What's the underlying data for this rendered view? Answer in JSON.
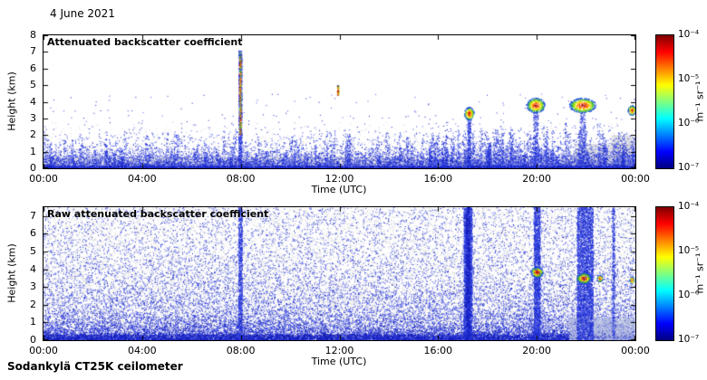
{
  "header": {
    "date": "4 June 2021"
  },
  "footer": {
    "label": "Sodankylä CT25K ceilometer"
  },
  "chart_data": [
    {
      "type": "heatmap",
      "title": "Attenuated backscatter coefficient",
      "xlabel": "Time (UTC)",
      "ylabel": "Height (km)",
      "x_ticks": [
        "00:00",
        "04:00",
        "08:00",
        "12:00",
        "16:00",
        "20:00",
        "00:00"
      ],
      "x_hours": [
        0,
        4,
        8,
        12,
        16,
        20,
        24
      ],
      "xlim": [
        0,
        24
      ],
      "ylim": [
        0,
        8
      ],
      "y_ticks": [
        0,
        1,
        2,
        3,
        4,
        5,
        6,
        7,
        8
      ],
      "grid": false,
      "colorbar": {
        "label": "m⁻¹ sr⁻¹",
        "scale": "log",
        "min": "10⁻⁷",
        "max": "10⁻⁴",
        "ticks": [
          "10⁻⁴",
          "10⁻⁵",
          "10⁻⁶",
          "10⁻⁷"
        ],
        "stops": [
          {
            "p": 0,
            "c": "#000080"
          },
          {
            "p": 12.5,
            "c": "#0000ff"
          },
          {
            "p": 37.5,
            "c": "#00ffff"
          },
          {
            "p": 62.5,
            "c": "#ffff00"
          },
          {
            "p": 87.5,
            "c": "#ff0000"
          },
          {
            "p": 100,
            "c": "#800000"
          }
        ]
      },
      "noise_seed": 42,
      "palettes": {
        "gray": [
          "#e6e6e6",
          "#dadade",
          "#cfcfd6",
          "#c3c7d2"
        ],
        "bluegray": [
          "#c9cfe6",
          "#b3bce0",
          "#9aa6d8"
        ],
        "blue": [
          "#2233dd",
          "#3344e8",
          "#1a2acc",
          "#4d5cee",
          "#0f1db8"
        ],
        "deepblue": [
          "#0a13a0",
          "#131fc4",
          "#2431dd"
        ],
        "cloud": [
          "#a00000",
          "#e03000",
          "#ff8000",
          "#ffd800",
          "#a8e000",
          "#30b040",
          "#2050e0"
        ],
        "jet_core": [
          "#b00000",
          "#ff4000",
          "#ffa000",
          "#ffe000",
          "#80d800",
          "#20a848",
          "#2848ff"
        ]
      },
      "layers": [
        {
          "type": "uniform",
          "palette": "gray",
          "n": 9000,
          "x0": 0,
          "x1": 24,
          "y0": 0,
          "y1": 0.7
        },
        {
          "type": "exp",
          "palette": "gray",
          "n": 3500,
          "x0": 0,
          "x1": 24,
          "scale": 0.8,
          "ymax": 2.8
        },
        {
          "type": "uniform",
          "palette": "gray",
          "n": 2200,
          "x0": 21.5,
          "x1": 24,
          "y0": 0,
          "y1": 1.5
        },
        {
          "type": "uniform",
          "palette": "gray",
          "n": 1400,
          "x0": 23,
          "x1": 24,
          "y0": 0,
          "y1": 2.0
        },
        {
          "type": "exp",
          "palette": "blue",
          "n": 11000,
          "x0": 0,
          "x1": 24,
          "scale": 0.5,
          "ymax": 3.2
        },
        {
          "type": "spikes",
          "palette": "blue",
          "count": 120,
          "x0": 0,
          "x1": 24,
          "top_min": 0.7,
          "top_max": 2.5,
          "dots": 26,
          "hw": 0.05
        },
        {
          "type": "spikes",
          "palette": "blue",
          "count": 70,
          "x0": 15.5,
          "x1": 24,
          "top_min": 1.0,
          "top_max": 2.9,
          "dots": 30,
          "hw": 0.05
        },
        {
          "type": "uniform",
          "palette": "blue",
          "n": 100,
          "x0": 0,
          "x1": 24,
          "y0": 2.5,
          "y1": 4.5
        },
        {
          "type": "uniform",
          "palette": "deepblue",
          "n": 2600,
          "x0": 0,
          "x1": 24,
          "y0": 0,
          "y1": 0.15
        },
        {
          "type": "column",
          "palette": "blue",
          "x": 7.97,
          "hw": 0.07,
          "y0": 0,
          "y1": 7.1,
          "n": 800
        },
        {
          "type": "column",
          "palette": "jet_core",
          "x": 7.97,
          "hw": 0.045,
          "y0": 2.0,
          "y1": 7.0,
          "n": 300
        },
        {
          "type": "column",
          "palette": "jet_core",
          "x": 11.93,
          "hw": 0.035,
          "y0": 4.4,
          "y1": 5.0,
          "n": 70
        },
        {
          "type": "column",
          "palette": "blue",
          "x": 17.25,
          "hw": 0.07,
          "y0": 0,
          "y1": 3.0,
          "n": 280
        },
        {
          "type": "cloud",
          "palette": "cloud",
          "x": 17.25,
          "y": 3.3,
          "rx": 0.2,
          "ry": 0.4,
          "n": 240
        },
        {
          "type": "column",
          "palette": "blue",
          "x": 19.95,
          "hw": 0.1,
          "y0": 0,
          "y1": 3.4,
          "n": 260
        },
        {
          "type": "cloud",
          "palette": "cloud",
          "x": 19.95,
          "y": 3.8,
          "rx": 0.38,
          "ry": 0.45,
          "n": 430
        },
        {
          "type": "column",
          "palette": "blue",
          "x": 21.85,
          "hw": 0.12,
          "y0": 0,
          "y1": 3.4,
          "n": 300
        },
        {
          "type": "cloud",
          "palette": "cloud",
          "x": 21.85,
          "y": 3.8,
          "rx": 0.55,
          "ry": 0.45,
          "n": 560
        },
        {
          "type": "cloud",
          "palette": "cloud",
          "x": 23.85,
          "y": 3.5,
          "rx": 0.16,
          "ry": 0.3,
          "n": 150
        }
      ]
    },
    {
      "type": "heatmap",
      "title": "Raw attenuated backscatter coefficient",
      "xlabel": "Time (UTC)",
      "ylabel": "Height (km)",
      "x_ticks": [
        "00:00",
        "04:00",
        "08:00",
        "12:00",
        "16:00",
        "20:00",
        "00:00"
      ],
      "x_hours": [
        0,
        4,
        8,
        12,
        16,
        20,
        24
      ],
      "xlim": [
        0,
        24
      ],
      "ylim": [
        0,
        7.5
      ],
      "y_ticks": [
        0,
        1,
        2,
        3,
        4,
        5,
        6,
        7
      ],
      "grid": false,
      "colorbar": {
        "label": "m⁻¹ sr⁻¹",
        "scale": "log",
        "min": "10⁻⁷",
        "max": "10⁻⁴",
        "ticks": [
          "10⁻⁴",
          "10⁻⁵",
          "10⁻⁶",
          "10⁻⁷"
        ],
        "stops": [
          {
            "p": 0,
            "c": "#000080"
          },
          {
            "p": 12.5,
            "c": "#0000ff"
          },
          {
            "p": 37.5,
            "c": "#00ffff"
          },
          {
            "p": 62.5,
            "c": "#ffff00"
          },
          {
            "p": 87.5,
            "c": "#ff0000"
          },
          {
            "p": 100,
            "c": "#800000"
          }
        ]
      },
      "noise_seed": 7,
      "palettes": {
        "gray": [
          "#e6e6e6",
          "#dadade",
          "#cfcfd6",
          "#c3c7d2"
        ],
        "bluegray": [
          "#c9cfe6",
          "#b3bce0",
          "#9aa6d8"
        ],
        "blue": [
          "#2233dd",
          "#3344e8",
          "#1a2acc",
          "#4d5cee",
          "#0f1db8"
        ],
        "deepblue": [
          "#0a13a0",
          "#131fc4",
          "#2431dd"
        ],
        "cloud": [
          "#a00000",
          "#e03000",
          "#ff8000",
          "#ffd800",
          "#a8e000",
          "#30b040",
          "#2050e0"
        ],
        "jet_core": [
          "#b00000",
          "#ff4000",
          "#ffa000",
          "#ffe000",
          "#80d800",
          "#20a848",
          "#2848ff"
        ]
      },
      "layers": [
        {
          "type": "uniform",
          "palette": "gray",
          "n": 15000,
          "x0": 0,
          "x1": 24,
          "y0": 0,
          "y1": 7.5
        },
        {
          "type": "exp",
          "palette": "gray",
          "n": 7000,
          "x0": 0,
          "x1": 24,
          "scale": 2.2,
          "ymax": 7.5
        },
        {
          "type": "uniform",
          "palette": "blue",
          "n": 7000,
          "x0": 0,
          "x1": 24,
          "y0": 0,
          "y1": 7.5
        },
        {
          "type": "exp",
          "palette": "blue",
          "n": 13000,
          "x0": 0,
          "x1": 24,
          "scale": 1.6,
          "ymax": 7.5
        },
        {
          "type": "exp",
          "palette": "deepblue",
          "n": 5000,
          "x0": 0,
          "x1": 24,
          "scale": 0.4,
          "ymax": 1.5
        },
        {
          "type": "uniform",
          "palette": "deepblue",
          "n": 4500,
          "x0": 0,
          "x1": 24,
          "y0": 0,
          "y1": 0.35
        },
        {
          "type": "uniform",
          "palette": "bluegray",
          "n": 2400,
          "x0": 21.3,
          "x1": 24,
          "y0": 0,
          "y1": 1.3
        },
        {
          "type": "column",
          "palette": "blue",
          "x": 7.97,
          "hw": 0.08,
          "y0": 0,
          "y1": 7.5,
          "n": 1000
        },
        {
          "type": "column",
          "palette": "blue",
          "x": 17.2,
          "hw": 0.17,
          "y0": 0,
          "y1": 7.5,
          "n": 2800
        },
        {
          "type": "column",
          "palette": "deepblue",
          "x": 17.2,
          "hw": 0.08,
          "y0": 0,
          "y1": 7.5,
          "n": 900
        },
        {
          "type": "column",
          "palette": "blue",
          "x": 20.0,
          "hw": 0.13,
          "y0": 0,
          "y1": 7.5,
          "n": 2000
        },
        {
          "type": "column",
          "palette": "blue",
          "x": 21.95,
          "hw": 0.33,
          "y0": 0,
          "y1": 7.5,
          "n": 3800
        },
        {
          "type": "column",
          "palette": "blue",
          "x": 23.1,
          "hw": 0.05,
          "y0": 0,
          "y1": 7.5,
          "n": 450
        },
        {
          "type": "cloud",
          "palette": "cloud",
          "x": 20.0,
          "y": 3.85,
          "rx": 0.25,
          "ry": 0.3,
          "n": 220
        },
        {
          "type": "cloud",
          "palette": "cloud",
          "x": 21.9,
          "y": 3.5,
          "rx": 0.3,
          "ry": 0.3,
          "n": 260
        },
        {
          "type": "cloud",
          "palette": "cloud",
          "x": 22.55,
          "y": 3.5,
          "rx": 0.12,
          "ry": 0.2,
          "n": 80
        },
        {
          "type": "cloud",
          "palette": "cloud",
          "x": 23.85,
          "y": 3.4,
          "rx": 0.1,
          "ry": 0.2,
          "n": 60
        }
      ]
    }
  ]
}
